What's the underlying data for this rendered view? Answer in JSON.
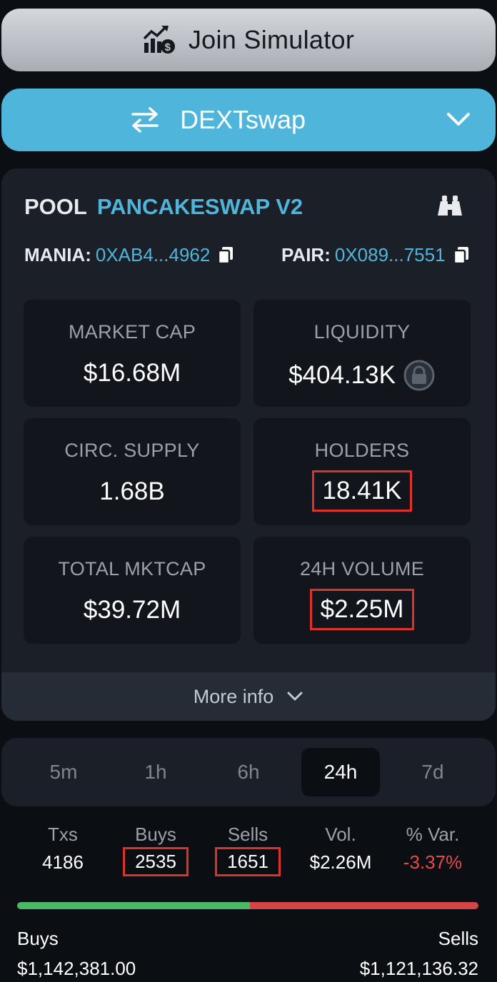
{
  "simulator_button": {
    "label": "Join Simulator",
    "icon": "chart-dollar-icon"
  },
  "exchange_select": {
    "label": "DEXTswap",
    "icon": "swap-arrows-icon"
  },
  "pool": {
    "prefix": "POOL",
    "dex": "PANCAKESWAP V2",
    "mania_label": "MANIA:",
    "mania_address": "0XAB4...4962",
    "pair_label": "PAIR:",
    "pair_address": "0X089...7551"
  },
  "stats": {
    "market_cap": {
      "label": "MARKET CAP",
      "value": "$16.68M"
    },
    "liquidity": {
      "label": "LIQUIDITY",
      "value": "$404.13K"
    },
    "circ_supply": {
      "label": "CIRC. SUPPLY",
      "value": "1.68B"
    },
    "holders": {
      "label": "HOLDERS",
      "value": "18.41K"
    },
    "total_mktcap": {
      "label": "TOTAL MKTCAP",
      "value": "$39.72M"
    },
    "volume_24h": {
      "label": "24H VOLUME",
      "value": "$2.25M"
    }
  },
  "more_info_label": "More info",
  "timeframes": [
    "5m",
    "1h",
    "6h",
    "24h",
    "7d"
  ],
  "active_timeframe": "24h",
  "tx_summary": {
    "txs": {
      "label": "Txs",
      "value": "4186"
    },
    "buys": {
      "label": "Buys",
      "value": "2535"
    },
    "sells": {
      "label": "Sells",
      "value": "1651"
    },
    "vol": {
      "label": "Vol.",
      "value": "$2.26M"
    },
    "var": {
      "label": "% Var.",
      "value": "-3.37%"
    }
  },
  "buy_sell": {
    "buys_label": "Buys",
    "buys_amount": "$1,142,381.00",
    "sells_label": "Sells",
    "sells_amount": "$1,121,136.32",
    "buy_share": 0.505
  },
  "colors": {
    "accent": "#4fb5db",
    "buy": "#4ab864",
    "sell": "#d64545",
    "highlight": "#e0302a"
  }
}
